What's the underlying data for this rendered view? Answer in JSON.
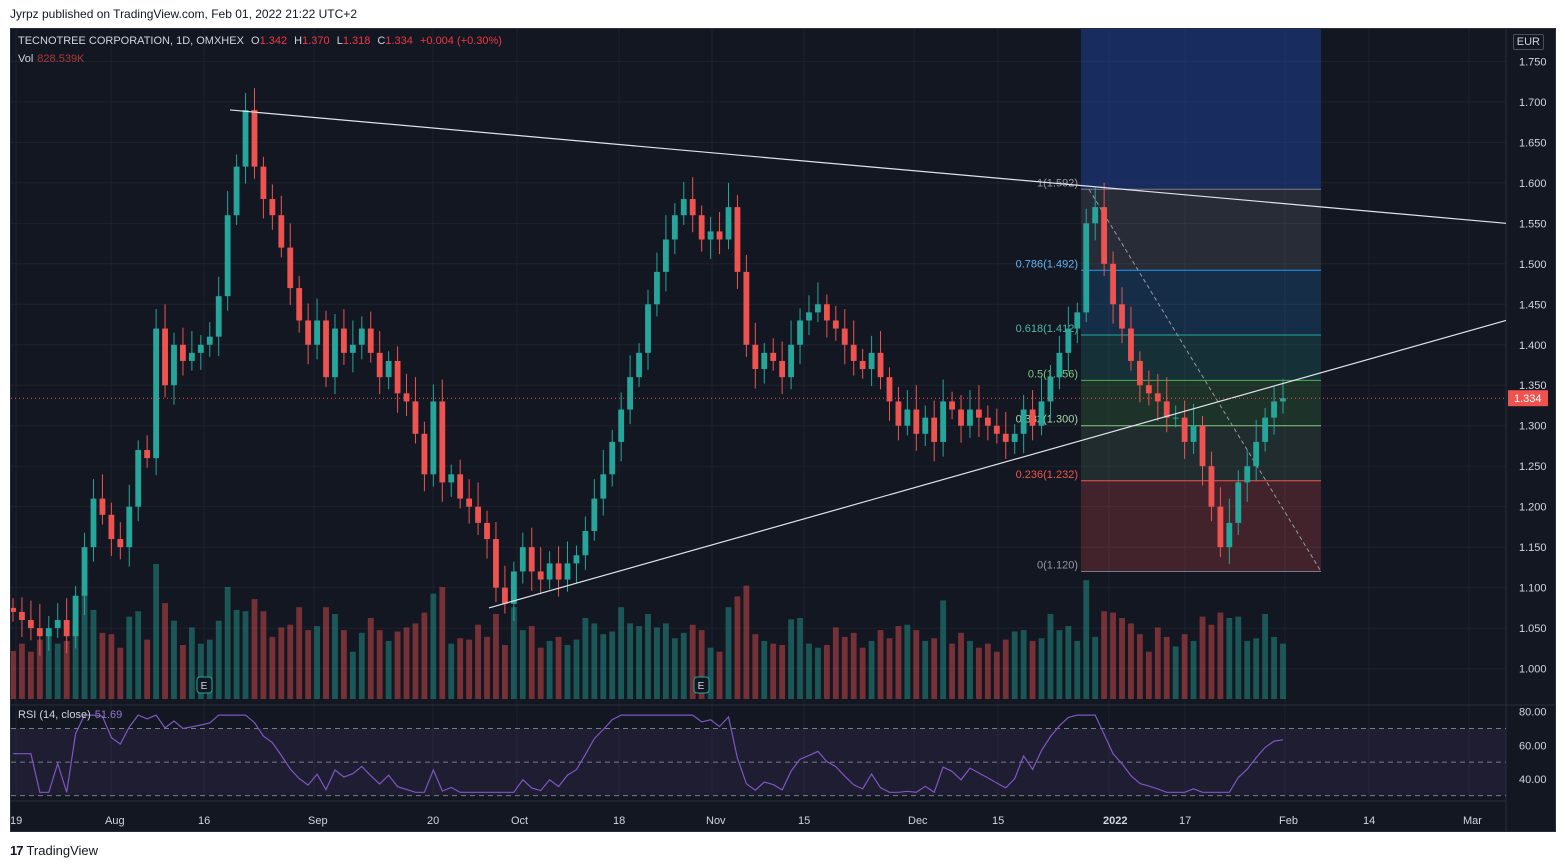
{
  "publisher_line": "Jyrpz published on TradingView.com, Feb 01, 2022 21:22 UTC+2",
  "footer": {
    "logo": "17",
    "brand": "TradingView"
  },
  "header": {
    "symbol": "TECNOTREE CORPORATION, 1D, OMXHEX",
    "o_label": "O",
    "o_value": "1.342",
    "h_label": "H",
    "h_value": "1.370",
    "l_label": "L",
    "l_value": "1.318",
    "c_label": "C",
    "c_value": "1.334",
    "change": "+0.004 (+0.30%)",
    "vol_label": "Vol",
    "vol_value": "828.539K",
    "rsi_label": "RSI (14, close)",
    "rsi_value": "51.69",
    "currency": "EUR"
  },
  "colors": {
    "up": "#26a69a",
    "down": "#ef5350",
    "background": "#131722",
    "rsi": "#7e57c2"
  },
  "chart_data": {
    "type": "candlestick",
    "price_axis": {
      "ticks": [
        "1.000",
        "1.050",
        "1.100",
        "1.150",
        "1.200",
        "1.250",
        "1.300",
        "1.350",
        "1.400",
        "1.450",
        "1.500",
        "1.550",
        "1.600",
        "1.650",
        "1.700",
        "1.750"
      ],
      "range": [
        0.96,
        1.79
      ]
    },
    "current_price_label": "1.334",
    "time_axis": {
      "ticks": [
        "19",
        "Aug",
        "16",
        "Sep",
        "20",
        "Oct",
        "18",
        "Nov",
        "15",
        "Dec",
        "15",
        "2022",
        "17",
        "Feb",
        "14",
        "Mar"
      ]
    },
    "rsi_axis": {
      "ticks": [
        "40.00",
        "60.00",
        "80.00"
      ],
      "range": [
        28,
        84
      ]
    },
    "fib_labels": [
      "1(1.592)",
      "0.786(1.492)",
      "0.618(1.412)",
      "0.5(1.356)",
      "0.382(1.300)",
      "0.236(1.232)",
      "0(1.120)"
    ],
    "fib_levels": [
      1.592,
      1.492,
      1.412,
      1.356,
      1.3,
      1.232,
      1.12
    ],
    "earnings_markers": [
      "E",
      "E"
    ],
    "candles_closes": [
      1.07,
      1.06,
      1.05,
      1.04,
      1.05,
      1.06,
      1.04,
      1.09,
      1.15,
      1.21,
      1.19,
      1.16,
      1.15,
      1.2,
      1.27,
      1.26,
      1.42,
      1.35,
      1.4,
      1.38,
      1.39,
      1.4,
      1.41,
      1.46,
      1.56,
      1.62,
      1.69,
      1.62,
      1.58,
      1.56,
      1.52,
      1.47,
      1.43,
      1.4,
      1.43,
      1.36,
      1.42,
      1.39,
      1.4,
      1.42,
      1.39,
      1.36,
      1.38,
      1.34,
      1.33,
      1.29,
      1.24,
      1.33,
      1.23,
      1.24,
      1.21,
      1.2,
      1.18,
      1.16,
      1.1,
      1.08,
      1.12,
      1.15,
      1.12,
      1.11,
      1.13,
      1.11,
      1.13,
      1.14,
      1.17,
      1.21,
      1.24,
      1.28,
      1.32,
      1.36,
      1.39,
      1.45,
      1.49,
      1.53,
      1.56,
      1.58,
      1.56,
      1.53,
      1.54,
      1.53,
      1.57,
      1.49,
      1.4,
      1.37,
      1.39,
      1.38,
      1.36,
      1.4,
      1.43,
      1.44,
      1.45,
      1.43,
      1.42,
      1.4,
      1.38,
      1.37,
      1.39,
      1.36,
      1.33,
      1.3,
      1.32,
      1.29,
      1.31,
      1.28,
      1.33,
      1.32,
      1.3,
      1.32,
      1.31,
      1.3,
      1.29,
      1.28,
      1.29,
      1.32,
      1.3,
      1.33,
      1.36,
      1.39,
      1.42,
      1.44,
      1.55,
      1.57,
      1.5,
      1.45,
      1.42,
      1.38,
      1.35,
      1.34,
      1.33,
      1.31,
      1.31,
      1.28,
      1.3,
      1.25,
      1.2,
      1.15,
      1.18,
      1.23,
      1.25,
      1.28,
      1.31,
      1.33,
      1.334
    ],
    "volume_note": "volume histogram colored by candle direction",
    "trendlines": [
      {
        "from": [
          "Aug 19",
          1.69
        ],
        "to": [
          "Feb 10",
          1.55
        ]
      },
      {
        "from": [
          "Sep 27",
          1.075
        ],
        "to": [
          "Feb 10",
          1.43
        ]
      }
    ]
  }
}
